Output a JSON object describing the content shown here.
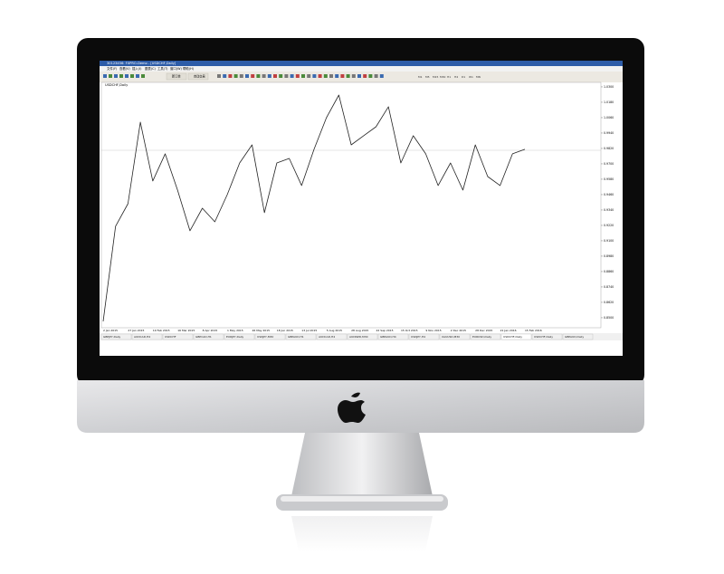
{
  "window": {
    "title": "30123456: FXPRO-Demo - [USDCHF,Daily]",
    "menu": [
      "文件(F)",
      "查看(V)",
      "插入(I)",
      "图表(C)",
      "工具(T)",
      "窗口(W)",
      "帮助(H)"
    ],
    "toolbar": [
      "新订单",
      "自动交易"
    ],
    "timeframes": [
      "M1",
      "M5",
      "M15",
      "M30",
      "H1",
      "H4",
      "D1",
      "W1",
      "MN"
    ],
    "tabs": [
      "GBPJPY,Daily",
      "AUDCAD,H4",
      "USDCHF",
      "GBPCAD,H1",
      "EURJPY,Daily",
      "USDJPY,M30",
      "GBPAUD,H1",
      "AUDCAD,H4",
      "AUDNZD,M30",
      "GBPAUD,H4",
      "USDJPY,H4",
      "XAUUSD,M30",
      "EURUSD,Daily",
      "USDCHF,Daily",
      "USDCHF,Daily",
      "GBPAUD,Daily"
    ],
    "active_tab": 13
  },
  "chart_data": {
    "type": "line",
    "title": "USDCHF,Daily",
    "color": "#222222",
    "categories": [
      "2 Jan 2015",
      null,
      "27 Jan 2015",
      null,
      "19 Feb 2015",
      null,
      "16 Mar 2015",
      null,
      "8 Apr 2015",
      null,
      "1 May 2015",
      null,
      "26 May 2015",
      null,
      "18 Jun 2015",
      null,
      "13 Jul 2015",
      null,
      "5 Aug 2015",
      null,
      "28 Aug 2015",
      null,
      "22 Sep 2015",
      null,
      "15 Oct 2015",
      null,
      "9 Nov 2015",
      null,
      "2 Dec 2015",
      null,
      "28 Dec 2015",
      null,
      "21 Jan 2016",
      null,
      "15 Feb 2016"
    ],
    "values": [
      0.8472,
      0.9213,
      0.9389,
      1.0025,
      0.9566,
      0.9778,
      0.9495,
      0.9178,
      0.9354,
      0.9248,
      0.946,
      0.9707,
      0.9848,
      0.9319,
      0.9707,
      0.9742,
      0.9531,
      0.9813,
      1.006,
      1.0236,
      0.9848,
      0.9919,
      0.9989,
      1.0145,
      0.9707,
      0.9919,
      0.9778,
      0.9531,
      0.9707,
      0.9495,
      0.9848,
      0.9601,
      0.9531,
      0.9778,
      0.9813
    ],
    "ylim": [
      0.8422,
      1.0335
    ],
    "yticks": [
      {
        "value": 0.85,
        "label": "0.8500"
      },
      {
        "value": 0.862,
        "label": "0.8620"
      },
      {
        "value": 0.874,
        "label": "0.8740"
      },
      {
        "value": 0.886,
        "label": "0.8860"
      },
      {
        "value": 0.898,
        "label": "0.8980"
      },
      {
        "value": 0.91,
        "label": "0.9100"
      },
      {
        "value": 0.922,
        "label": "0.9220"
      },
      {
        "value": 0.934,
        "label": "0.9340"
      },
      {
        "value": 0.946,
        "label": "0.9460"
      },
      {
        "value": 0.958,
        "label": "0.9580"
      },
      {
        "value": 0.97,
        "label": "0.9700"
      },
      {
        "value": 0.982,
        "label": "0.9820"
      },
      {
        "value": 0.994,
        "label": "0.9940"
      },
      {
        "value": 1.006,
        "label": "1.0060"
      },
      {
        "value": 1.018,
        "label": "1.0180"
      },
      {
        "value": 1.03,
        "label": "1.0300"
      }
    ],
    "grid": false
  }
}
